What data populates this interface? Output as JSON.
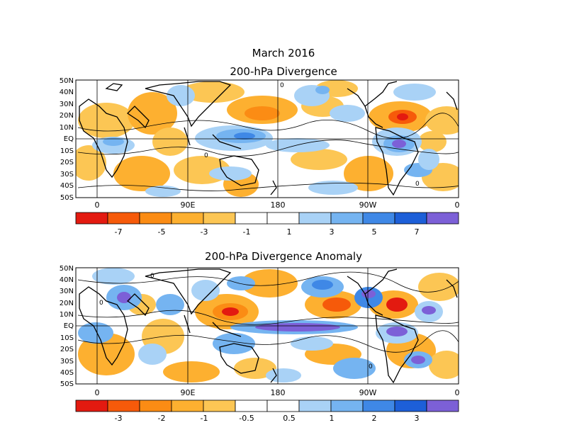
{
  "figure": {
    "title": "March 2016",
    "panels": [
      {
        "id": "top",
        "title": "200-hPa Divergence",
        "lat_labels": [
          "50N",
          "40N",
          "30N",
          "20N",
          "10N",
          "EQ",
          "10S",
          "20S",
          "30S",
          "40S",
          "50S"
        ],
        "lon_labels": [
          "0",
          "90E",
          "180",
          "90W",
          "0"
        ],
        "contour_labels": [
          "0"
        ],
        "colorbar": {
          "colors": [
            "#e31a10",
            "#f65a0a",
            "#fb8c14",
            "#fdb030",
            "#fcc654",
            "#ffffff",
            "#ffffff",
            "#a9d2f6",
            "#75b4f1",
            "#3f88e6",
            "#1d5fd8",
            "#7c60d7"
          ],
          "labels": [
            "-7",
            "-5",
            "-3",
            "-1",
            "1",
            "3",
            "5",
            "7"
          ]
        }
      },
      {
        "id": "bottom",
        "title": "200-hPa Divergence Anomaly",
        "lat_labels": [
          "50N",
          "40N",
          "30N",
          "20N",
          "10N",
          "EQ",
          "10S",
          "20S",
          "30S",
          "40S",
          "50S"
        ],
        "lon_labels": [
          "0",
          "90E",
          "180",
          "90W",
          "0"
        ],
        "contour_labels": [
          "0"
        ],
        "colorbar": {
          "colors": [
            "#e31a10",
            "#f65a0a",
            "#fb8c14",
            "#fdb030",
            "#fcc654",
            "#ffffff",
            "#ffffff",
            "#a9d2f6",
            "#75b4f1",
            "#3f88e6",
            "#1d5fd8",
            "#7c60d7"
          ],
          "labels": [
            "-3",
            "-2",
            "-1",
            "-0.5",
            "0.5",
            "1",
            "2",
            "3"
          ]
        }
      }
    ]
  }
}
